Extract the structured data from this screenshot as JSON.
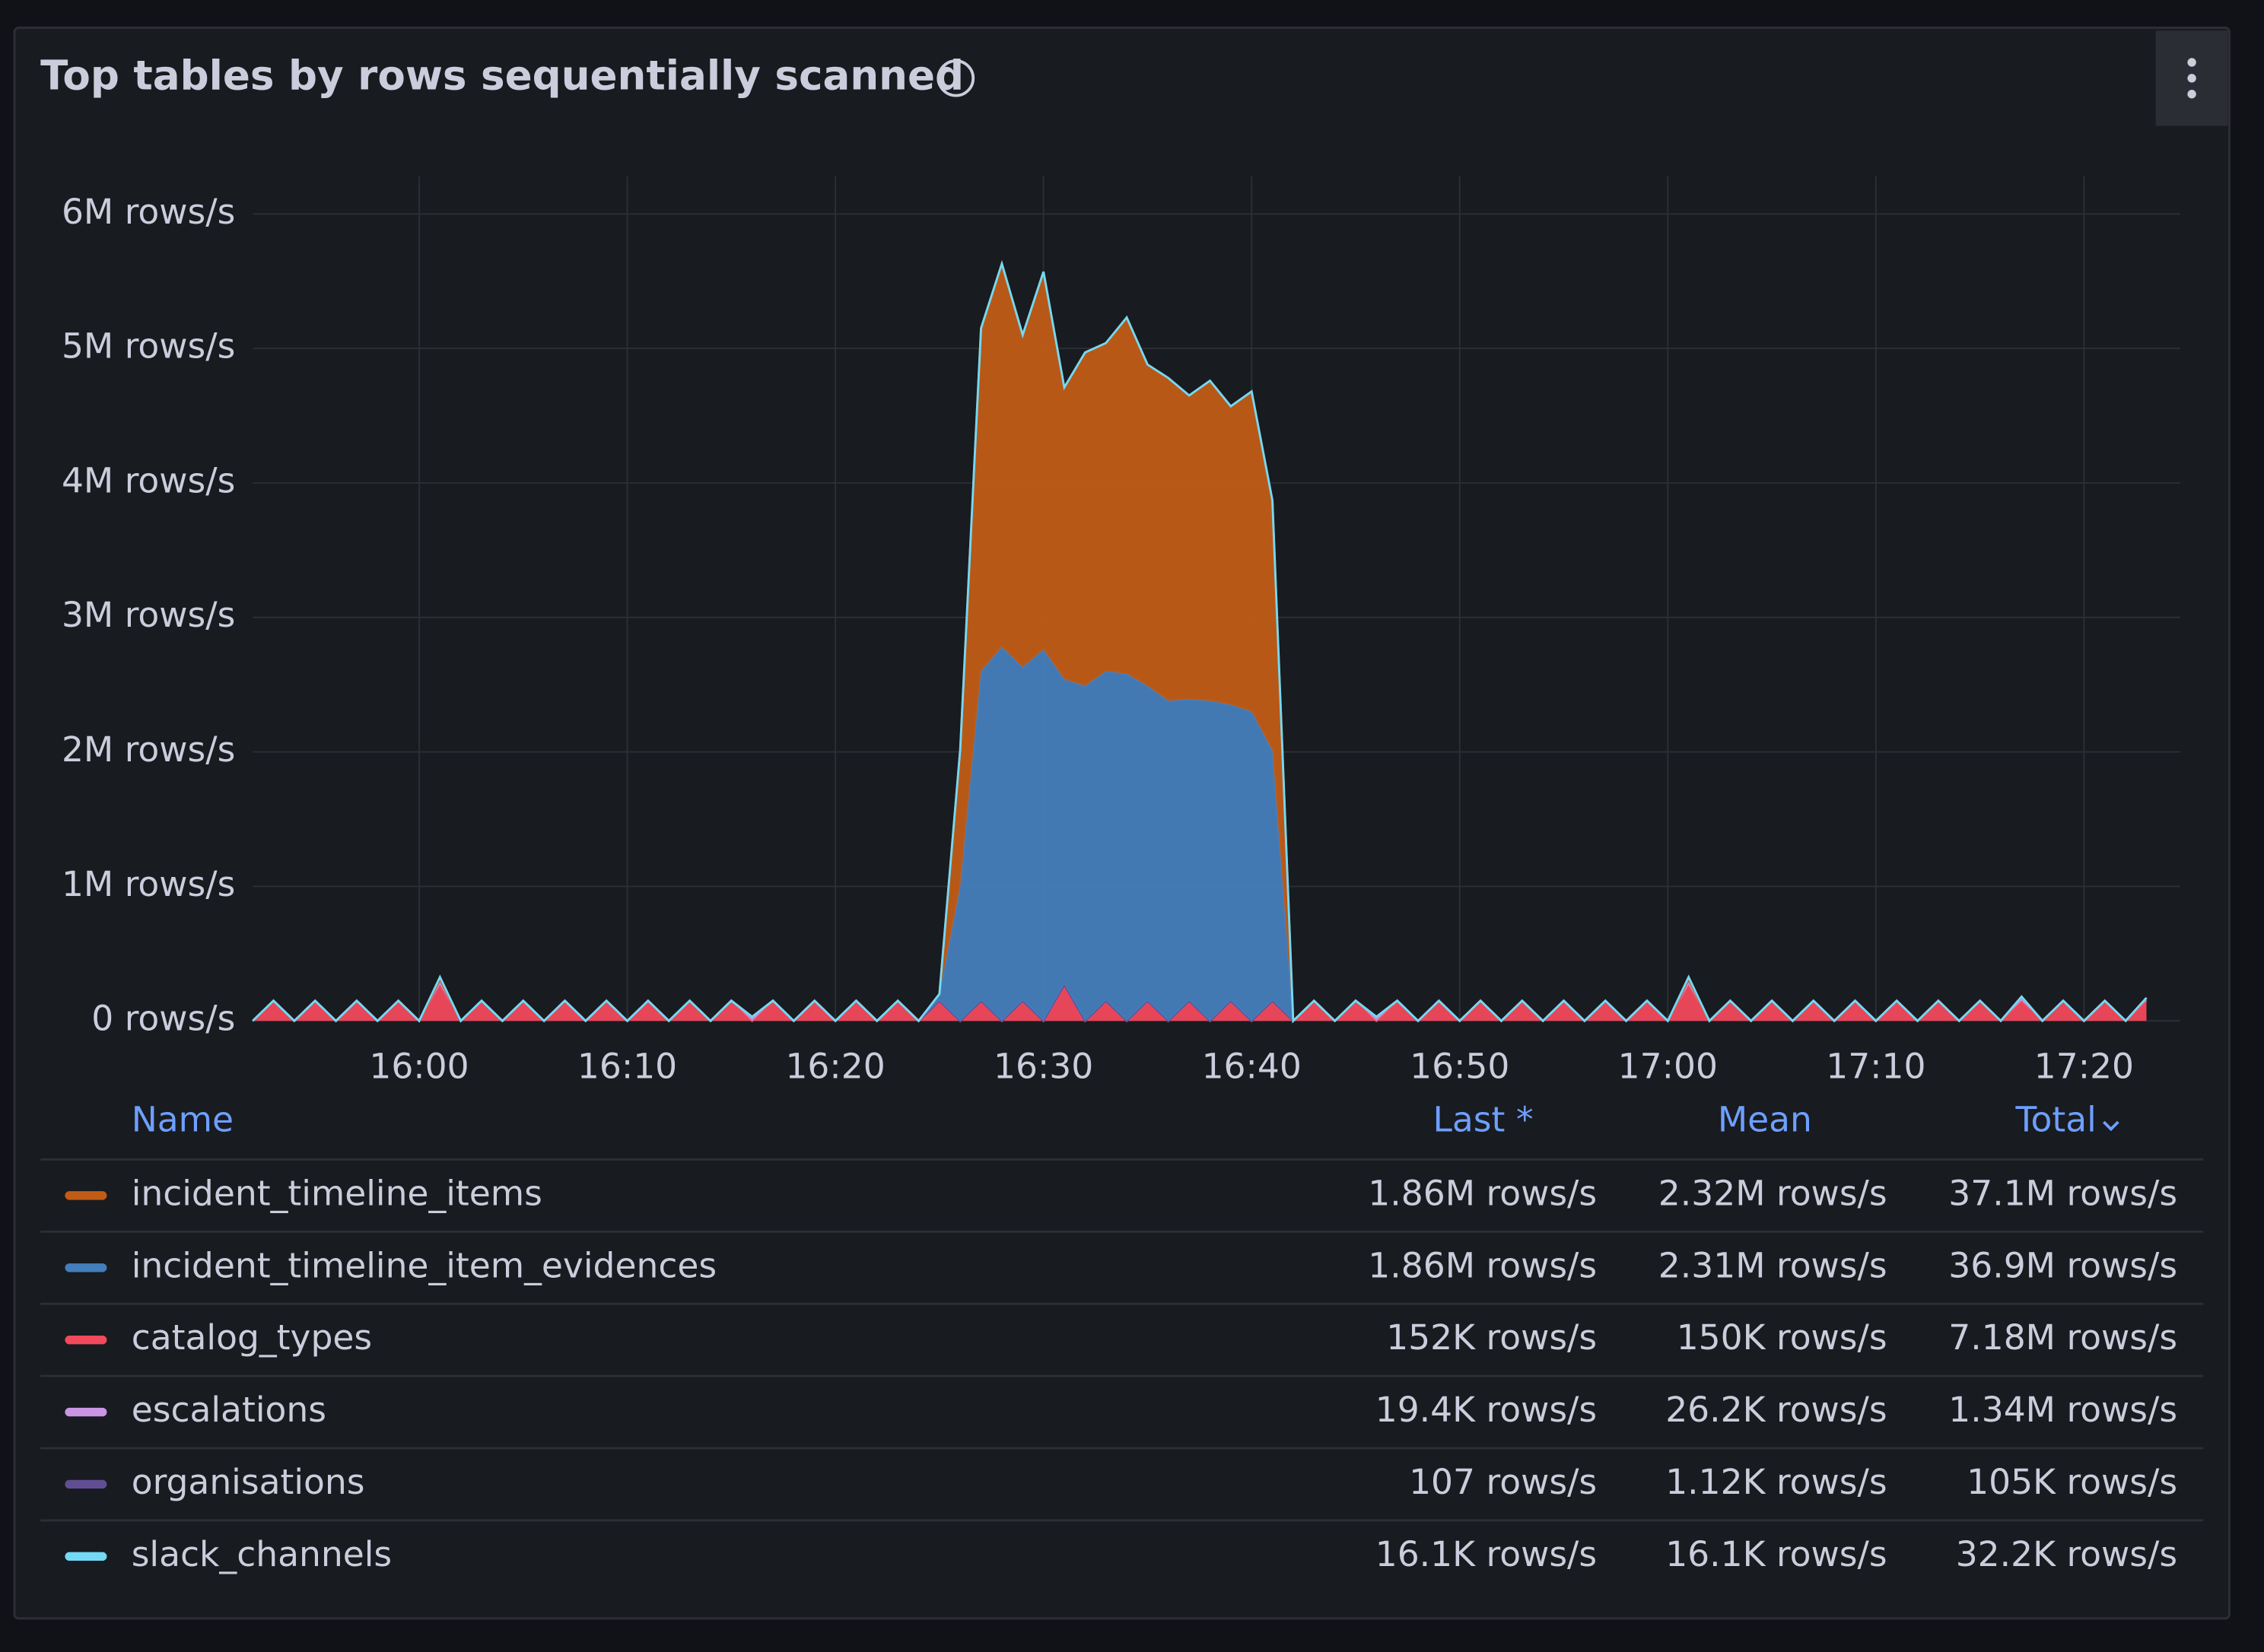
{
  "chart_data": {
    "type": "stacked-area",
    "title": "Top tables by rows sequentially scanned",
    "x": [
      "15:52",
      "15:53",
      "15:54",
      "15:55",
      "15:56",
      "15:57",
      "15:58",
      "15:59",
      "16:00",
      "16:01",
      "16:02",
      "16:03",
      "16:04",
      "16:05",
      "16:06",
      "16:07",
      "16:08",
      "16:09",
      "16:10",
      "16:11",
      "16:12",
      "16:13",
      "16:14",
      "16:15",
      "16:16",
      "16:17",
      "16:18",
      "16:19",
      "16:20",
      "16:21",
      "16:22",
      "16:23",
      "16:24",
      "16:25",
      "16:26",
      "16:27",
      "16:28",
      "16:29",
      "16:30",
      "16:31",
      "16:32",
      "16:33",
      "16:34",
      "16:35",
      "16:36",
      "16:37",
      "16:38",
      "16:39",
      "16:40",
      "16:41",
      "16:42",
      "16:43",
      "16:44",
      "16:45",
      "16:46",
      "16:47",
      "16:48",
      "16:49",
      "16:50",
      "16:51",
      "16:52",
      "16:53",
      "16:54",
      "16:55",
      "16:56",
      "16:57",
      "16:58",
      "16:59",
      "17:00",
      "17:01",
      "17:02",
      "17:03",
      "17:04",
      "17:05",
      "17:06",
      "17:07",
      "17:08",
      "17:09",
      "17:10",
      "17:11",
      "17:12",
      "17:13",
      "17:14",
      "17:15",
      "17:16",
      "17:17",
      "17:18",
      "17:19",
      "17:20",
      "17:21",
      "17:22",
      "17:23"
    ],
    "xlim": [
      "15:52",
      "17:24"
    ],
    "xticks": [
      "16:00",
      "16:10",
      "16:20",
      "16:30",
      "16:40",
      "16:50",
      "17:00",
      "17:10",
      "17:20"
    ],
    "ylim": [
      0,
      6000000
    ],
    "yticks": [
      {
        "value": 0,
        "label": "0 rows/s"
      },
      {
        "value": 1000000,
        "label": "1M rows/s"
      },
      {
        "value": 2000000,
        "label": "2M rows/s"
      },
      {
        "value": 3000000,
        "label": "3M rows/s"
      },
      {
        "value": 4000000,
        "label": "4M rows/s"
      },
      {
        "value": 5000000,
        "label": "5M rows/s"
      },
      {
        "value": 6000000,
        "label": "6M rows/s"
      }
    ],
    "grid": true,
    "series": [
      {
        "name": "incident_timeline_items",
        "color": "#c15c17",
        "values": [
          0,
          0,
          0,
          0,
          0,
          0,
          0,
          0,
          0,
          0,
          0,
          0,
          0,
          0,
          0,
          0,
          0,
          0,
          0,
          0,
          0,
          0,
          0,
          0,
          0,
          0,
          0,
          0,
          0,
          0,
          0,
          0,
          0,
          0,
          1020000,
          2550000,
          2850000,
          2470000,
          2810000,
          2170000,
          2480000,
          2440000,
          2650000,
          2390000,
          2400000,
          2260000,
          2380000,
          2220000,
          2380000,
          1860000,
          0,
          0,
          0,
          0,
          0,
          0,
          0,
          0,
          0,
          0,
          0,
          0,
          0,
          0,
          0,
          0,
          0,
          0,
          0,
          0,
          0,
          0,
          0,
          0,
          0,
          0,
          0,
          0,
          0,
          0,
          0,
          0,
          0,
          0,
          0,
          0,
          0,
          0,
          0,
          0,
          0,
          0
        ]
      },
      {
        "name": "incident_timeline_item_evidences",
        "color": "#447ebc",
        "values": [
          0,
          0,
          0,
          0,
          0,
          0,
          0,
          0,
          0,
          0,
          0,
          0,
          0,
          0,
          0,
          0,
          0,
          0,
          0,
          0,
          0,
          0,
          0,
          0,
          0,
          0,
          0,
          0,
          0,
          0,
          0,
          0,
          0,
          50000,
          1000000,
          2450000,
          2780000,
          2480000,
          2760000,
          2270000,
          2490000,
          2450000,
          2580000,
          2340000,
          2380000,
          2240000,
          2380000,
          2200000,
          2300000,
          1860000,
          0,
          0,
          0,
          0,
          0,
          0,
          0,
          0,
          0,
          0,
          0,
          0,
          0,
          0,
          0,
          0,
          0,
          0,
          0,
          0,
          0,
          0,
          0,
          0,
          0,
          0,
          0,
          0,
          0,
          0,
          0,
          0,
          0,
          0,
          0,
          0,
          0,
          0,
          0,
          0,
          0,
          0
        ]
      },
      {
        "name": "catalog_types",
        "color": "#f2495c",
        "values": [
          0,
          150000,
          0,
          150000,
          0,
          150000,
          0,
          150000,
          0,
          270000,
          0,
          150000,
          0,
          150000,
          0,
          150000,
          0,
          150000,
          0,
          150000,
          0,
          150000,
          0,
          150000,
          0,
          150000,
          0,
          150000,
          0,
          150000,
          0,
          150000,
          0,
          150000,
          0,
          150000,
          0,
          150000,
          0,
          270000,
          0,
          150000,
          0,
          150000,
          0,
          150000,
          0,
          150000,
          0,
          150000,
          0,
          150000,
          0,
          150000,
          0,
          150000,
          0,
          150000,
          0,
          150000,
          0,
          150000,
          0,
          150000,
          0,
          150000,
          0,
          150000,
          0,
          270000,
          0,
          150000,
          0,
          150000,
          0,
          150000,
          0,
          150000,
          0,
          150000,
          0,
          150000,
          0,
          150000,
          0,
          150000,
          0,
          150000,
          0,
          150000,
          0,
          152000
        ]
      },
      {
        "name": "escalations",
        "color": "#ca95e5",
        "values": [
          0,
          0,
          0,
          0,
          0,
          0,
          0,
          0,
          0,
          40000,
          0,
          0,
          0,
          0,
          0,
          0,
          0,
          0,
          0,
          0,
          0,
          0,
          0,
          0,
          30000,
          0,
          0,
          0,
          0,
          0,
          0,
          0,
          0,
          0,
          0,
          0,
          0,
          0,
          0,
          0,
          0,
          0,
          0,
          0,
          0,
          0,
          0,
          0,
          0,
          0,
          0,
          0,
          0,
          0,
          30000,
          0,
          0,
          0,
          0,
          0,
          0,
          0,
          0,
          0,
          0,
          0,
          0,
          0,
          0,
          40000,
          0,
          0,
          0,
          0,
          0,
          0,
          0,
          0,
          0,
          0,
          0,
          0,
          0,
          0,
          0,
          30000,
          0,
          0,
          0,
          0,
          0,
          19400
        ]
      },
      {
        "name": "organisations",
        "color": "#614d93",
        "values": [
          0,
          0,
          0,
          0,
          0,
          0,
          0,
          0,
          0,
          0,
          0,
          0,
          0,
          0,
          0,
          0,
          0,
          0,
          0,
          0,
          0,
          0,
          0,
          0,
          0,
          0,
          0,
          0,
          0,
          0,
          0,
          0,
          0,
          0,
          0,
          0,
          0,
          0,
          0,
          0,
          0,
          0,
          0,
          0,
          0,
          0,
          0,
          0,
          0,
          0,
          0,
          0,
          0,
          0,
          0,
          0,
          0,
          0,
          0,
          0,
          0,
          0,
          0,
          0,
          0,
          0,
          0,
          0,
          0,
          0,
          0,
          0,
          0,
          0,
          0,
          0,
          0,
          0,
          0,
          0,
          0,
          0,
          0,
          0,
          0,
          0,
          0,
          0,
          0,
          0,
          0,
          107
        ]
      },
      {
        "name": "slack_channels",
        "color": "#73d9f5",
        "values": [
          0,
          0,
          0,
          0,
          0,
          0,
          0,
          0,
          0,
          16100,
          0,
          0,
          0,
          0,
          0,
          0,
          0,
          0,
          0,
          0,
          0,
          0,
          0,
          0,
          0,
          0,
          0,
          0,
          0,
          0,
          0,
          0,
          0,
          0,
          0,
          0,
          0,
          0,
          0,
          0,
          0,
          0,
          0,
          0,
          0,
          0,
          0,
          0,
          0,
          0,
          0,
          0,
          0,
          0,
          0,
          0,
          0,
          0,
          0,
          0,
          0,
          0,
          0,
          0,
          0,
          0,
          0,
          0,
          0,
          16100,
          0,
          0,
          0,
          0,
          0,
          0,
          0,
          0,
          0,
          0,
          0,
          0,
          0,
          0,
          0,
          0,
          0,
          0,
          0,
          0,
          0,
          0
        ]
      }
    ],
    "legend": {
      "headers": [
        "Name",
        "Last *",
        "Mean",
        "Total"
      ],
      "rows": [
        [
          "1.86M rows/s",
          "2.32M rows/s",
          "37.1M rows/s"
        ],
        [
          "1.86M rows/s",
          "2.31M rows/s",
          "36.9M rows/s"
        ],
        [
          "152K rows/s",
          "150K rows/s",
          "7.18M rows/s"
        ],
        [
          "19.4K rows/s",
          "26.2K rows/s",
          "1.34M rows/s"
        ],
        [
          "107 rows/s",
          "1.12K rows/s",
          "105K rows/s"
        ],
        [
          "16.1K rows/s",
          "16.1K rows/s",
          "32.2K rows/s"
        ]
      ]
    }
  }
}
